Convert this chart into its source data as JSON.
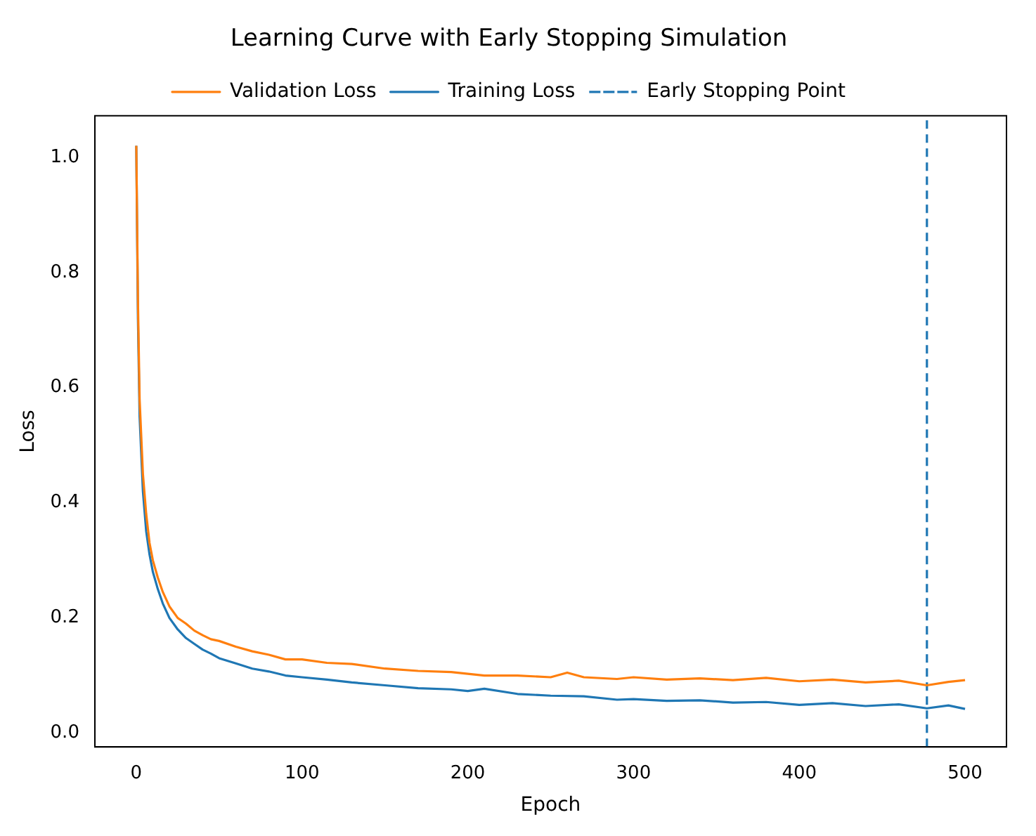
{
  "chart_data": {
    "type": "line",
    "title": "Learning Curve with Early Stopping Simulation",
    "xlabel": "Epoch",
    "ylabel": "Loss",
    "xlim": [
      -25,
      525
    ],
    "xticks": [
      0,
      100,
      200,
      300,
      400,
      500
    ],
    "ylim": [
      -0.024,
      1.072
    ],
    "yticks": [
      {
        "value": 0,
        "label": "0.0"
      },
      0.2,
      0.4,
      0.6,
      0.8,
      {
        "value": 1,
        "label": "1.0"
      }
    ],
    "grid": false,
    "legend": "top",
    "line_style": "solid",
    "marker": "none",
    "series": [
      {
        "name": "Training Loss",
        "color": "#1f77b4",
        "x": [
          0,
          1,
          2,
          4,
          6,
          8,
          10,
          13,
          16,
          20,
          25,
          30,
          35,
          40,
          45,
          50,
          60,
          70,
          80,
          90,
          100,
          115,
          130,
          150,
          170,
          190,
          200,
          210,
          230,
          250,
          270,
          290,
          300,
          320,
          340,
          360,
          380,
          400,
          420,
          440,
          460,
          477,
          490,
          500
        ],
        "values": [
          1.02,
          0.72,
          0.55,
          0.42,
          0.35,
          0.31,
          0.28,
          0.25,
          0.225,
          0.2,
          0.18,
          0.165,
          0.155,
          0.145,
          0.138,
          0.13,
          0.121,
          0.112,
          0.107,
          0.1,
          0.097,
          0.093,
          0.088,
          0.083,
          0.078,
          0.076,
          0.073,
          0.077,
          0.068,
          0.065,
          0.064,
          0.058,
          0.059,
          0.056,
          0.057,
          0.053,
          0.054,
          0.049,
          0.052,
          0.047,
          0.05,
          0.043,
          0.048,
          0.042
        ]
      },
      {
        "name": "Validation Loss",
        "color": "#ff7f0e",
        "x": [
          0,
          1,
          2,
          4,
          6,
          8,
          10,
          13,
          16,
          20,
          25,
          30,
          35,
          40,
          45,
          50,
          60,
          70,
          80,
          90,
          100,
          115,
          130,
          150,
          170,
          190,
          200,
          210,
          230,
          250,
          260,
          270,
          290,
          300,
          320,
          340,
          360,
          380,
          400,
          420,
          440,
          460,
          477,
          490,
          500
        ],
        "values": [
          1.02,
          0.75,
          0.58,
          0.45,
          0.38,
          0.33,
          0.3,
          0.27,
          0.245,
          0.22,
          0.2,
          0.19,
          0.178,
          0.17,
          0.163,
          0.16,
          0.15,
          0.142,
          0.136,
          0.128,
          0.128,
          0.122,
          0.12,
          0.112,
          0.108,
          0.106,
          0.103,
          0.1,
          0.1,
          0.097,
          0.105,
          0.097,
          0.094,
          0.097,
          0.093,
          0.095,
          0.092,
          0.096,
          0.09,
          0.093,
          0.088,
          0.091,
          0.083,
          0.089,
          0.092
        ]
      }
    ],
    "ref_lines": [
      {
        "axis": "x",
        "value": 477,
        "label": "Early Stopping Point",
        "color": "#1f77b4",
        "line_style": "dashed"
      }
    ]
  }
}
